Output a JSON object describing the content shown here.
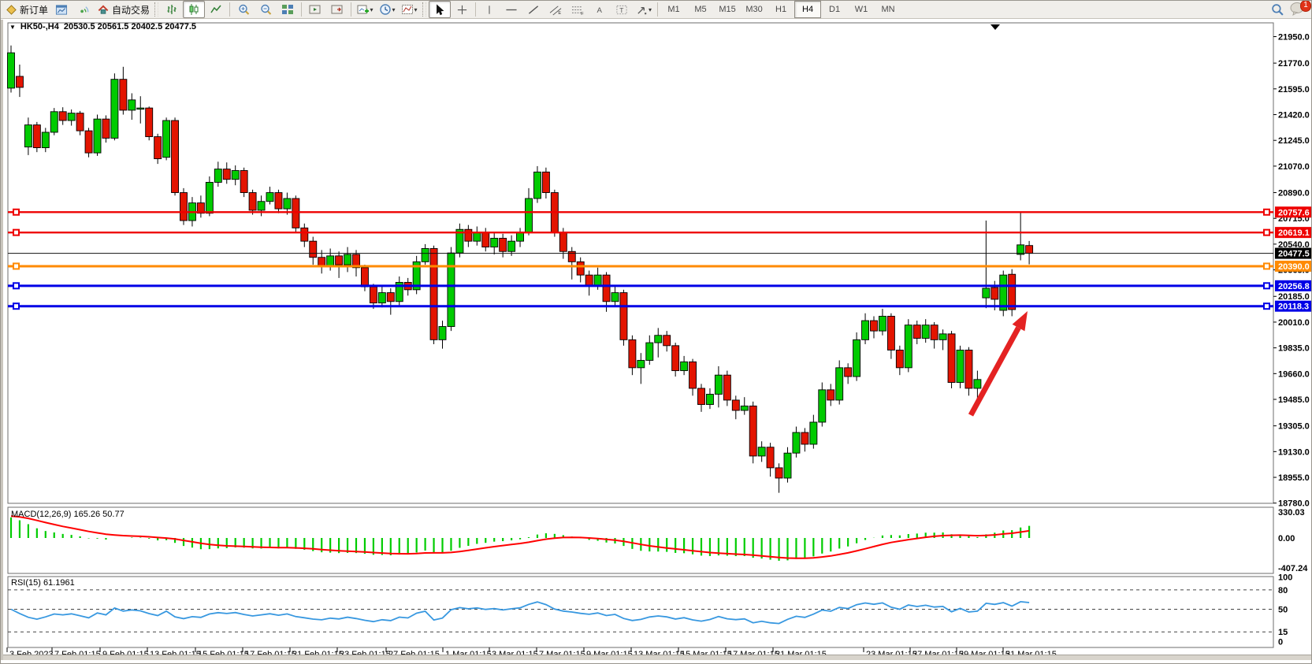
{
  "toolbar": {
    "new_order_label": "新订单",
    "autotrade_label": "自动交易",
    "timeframes": [
      "M1",
      "M5",
      "M15",
      "M30",
      "H1",
      "H4",
      "D1",
      "W1",
      "MN"
    ],
    "active_timeframe": "H4",
    "notification_badge": "1"
  },
  "chart_window": {
    "symbol_title": "HK50-,H4",
    "ohlc_text": "20530.5 20561.5 20402.5 20477.5",
    "open": "20530.5",
    "high": "20561.5",
    "low": "20402.5",
    "close": "20477.5"
  },
  "indicator_labels": {
    "macd": "MACD(12,26,9) 165.26 50.77",
    "rsi": "RSI(15) 61.1961"
  },
  "colors": {
    "bull": "#00cb00",
    "bear": "#e31400",
    "wick": "#000000",
    "line_red": "#ee0000",
    "line_orange": "#ff8a00",
    "line_blue": "#0000e6",
    "price_line": "#111111",
    "macd_hist": "#00cc00",
    "macd_signal": "#ff0000",
    "rsi_line": "#3898e0",
    "arrow": "#e42222"
  },
  "chart_data": [
    {
      "type": "candlestick",
      "title": "HK50-,H4",
      "ylim": [
        18780,
        21950
      ],
      "y_ticks": [
        21950.0,
        21770.0,
        21595.0,
        21420.0,
        21245.0,
        21070.0,
        20890.0,
        20715.0,
        20540.0,
        20365.0,
        20185.0,
        20010.0,
        19835.0,
        19660.0,
        19485.0,
        19305.0,
        19130.0,
        18955.0,
        18780.0
      ],
      "horizontal_lines": [
        {
          "price": 20757.6,
          "color": "#ee0000",
          "width": 2.4
        },
        {
          "price": 20619.1,
          "color": "#ee0000",
          "width": 2.4
        },
        {
          "price": 20477.5,
          "color": "#111111",
          "width": 1
        },
        {
          "price": 20390.0,
          "color": "#ff8a00",
          "width": 3
        },
        {
          "price": 20256.8,
          "color": "#0000e6",
          "width": 3
        },
        {
          "price": 20118.3,
          "color": "#0000e6",
          "width": 3
        }
      ],
      "time_labels": [
        {
          "x": 5,
          "label": "3 Feb 2023"
        },
        {
          "x": 62,
          "label": "7 Feb 01:15"
        },
        {
          "x": 123,
          "label": "9 Feb 01:15"
        },
        {
          "x": 183,
          "label": "13 Feb 01:15"
        },
        {
          "x": 244,
          "label": "15 Feb 01:15"
        },
        {
          "x": 304,
          "label": "17 Feb 01:15"
        },
        {
          "x": 364,
          "label": "21 Feb 01:15"
        },
        {
          "x": 424,
          "label": "23 Feb 01:15"
        },
        {
          "x": 486,
          "label": "27 Feb 01:15"
        },
        {
          "x": 558,
          "label": "1 Mar 01:15"
        },
        {
          "x": 617,
          "label": "3 Mar 01:15"
        },
        {
          "x": 677,
          "label": "7 Mar 01:15"
        },
        {
          "x": 737,
          "label": "9 Mar 01:15"
        },
        {
          "x": 797,
          "label": "13 Mar 01:15"
        },
        {
          "x": 857,
          "label": "15 Mar 01:15"
        },
        {
          "x": 917,
          "label": "17 Mar 01:15"
        },
        {
          "x": 977,
          "label": "21 Mar 01:15"
        },
        {
          "x": 1092,
          "label": "23 Mar 01:15"
        },
        {
          "x": 1151,
          "label": "27 Mar 01:15"
        },
        {
          "x": 1210,
          "label": "29 Mar 01:15"
        },
        {
          "x": 1269,
          "label": "31 Mar 01:15"
        }
      ],
      "annotation_arrow": {
        "from": [
          1228,
          502
        ],
        "to": [
          1300,
          370
        ],
        "color": "#e42222"
      },
      "candles": [
        [
          21600,
          21890,
          21570,
          21840
        ],
        [
          21680,
          21760,
          21540,
          21605
        ],
        [
          21200,
          21400,
          21145,
          21350
        ],
        [
          21350,
          21370,
          21165,
          21195
        ],
        [
          21195,
          21330,
          21165,
          21300
        ],
        [
          21300,
          21465,
          21280,
          21440
        ],
        [
          21440,
          21470,
          21350,
          21380
        ],
        [
          21380,
          21455,
          21345,
          21430
        ],
        [
          21430,
          21445,
          21280,
          21310
        ],
        [
          21310,
          21330,
          21130,
          21160
        ],
        [
          21160,
          21420,
          21140,
          21390
        ],
        [
          21390,
          21415,
          21230,
          21260
        ],
        [
          21260,
          21700,
          21245,
          21660
        ],
        [
          21660,
          21745,
          21420,
          21450
        ],
        [
          21450,
          21565,
          21385,
          21520
        ],
        [
          21460,
          21545,
          21360,
          21465
        ],
        [
          21465,
          21475,
          21245,
          21270
        ],
        [
          21270,
          21290,
          21085,
          21120
        ],
        [
          21130,
          21400,
          21110,
          21380
        ],
        [
          21380,
          21400,
          20870,
          20890
        ],
        [
          20890,
          20920,
          20670,
          20700
        ],
        [
          20700,
          20860,
          20660,
          20820
        ],
        [
          20820,
          20870,
          20720,
          20750
        ],
        [
          20750,
          21000,
          20730,
          20960
        ],
        [
          20960,
          21100,
          20930,
          21050
        ],
        [
          21050,
          21095,
          20950,
          20980
        ],
        [
          20980,
          21075,
          20940,
          21040
        ],
        [
          21040,
          21060,
          20860,
          20890
        ],
        [
          20890,
          20910,
          20740,
          20770
        ],
        [
          20770,
          20870,
          20730,
          20830
        ],
        [
          20830,
          20930,
          20810,
          20890
        ],
        [
          20890,
          20910,
          20750,
          20780
        ],
        [
          20780,
          20890,
          20740,
          20850
        ],
        [
          20850,
          20870,
          20620,
          20650
        ],
        [
          20650,
          20680,
          20520,
          20560
        ],
        [
          20560,
          20590,
          20400,
          20450
        ],
        [
          20450,
          20500,
          20340,
          20390
        ],
        [
          20390,
          20510,
          20360,
          20460
        ],
        [
          20460,
          20490,
          20310,
          20400
        ],
        [
          20400,
          20520,
          20350,
          20470
        ],
        [
          20470,
          20500,
          20320,
          20380
        ],
        [
          20380,
          20400,
          20220,
          20250
        ],
        [
          20250,
          20270,
          20100,
          20140
        ],
        [
          20140,
          20260,
          20110,
          20210
        ],
        [
          20210,
          20240,
          20060,
          20150
        ],
        [
          20150,
          20320,
          20120,
          20280
        ],
        [
          20280,
          20310,
          20190,
          20230
        ],
        [
          20230,
          20460,
          20200,
          20420
        ],
        [
          20420,
          20540,
          20400,
          20510
        ],
        [
          20510,
          20530,
          19860,
          19890
        ],
        [
          19890,
          20020,
          19830,
          19980
        ],
        [
          19980,
          20520,
          19950,
          20480
        ],
        [
          20480,
          20680,
          20450,
          20640
        ],
        [
          20640,
          20670,
          20520,
          20560
        ],
        [
          20560,
          20660,
          20530,
          20620
        ],
        [
          20620,
          20650,
          20490,
          20520
        ],
        [
          20520,
          20620,
          20470,
          20580
        ],
        [
          20580,
          20610,
          20450,
          20490
        ],
        [
          20490,
          20600,
          20460,
          20560
        ],
        [
          20560,
          20650,
          20520,
          20620
        ],
        [
          20620,
          20920,
          20600,
          20850
        ],
        [
          20850,
          21070,
          20820,
          21030
        ],
        [
          21030,
          21060,
          20850,
          20890
        ],
        [
          20890,
          20910,
          20590,
          20620
        ],
        [
          20620,
          20650,
          20440,
          20490
        ],
        [
          20490,
          20520,
          20300,
          20420
        ],
        [
          20420,
          20450,
          20280,
          20330
        ],
        [
          20330,
          20360,
          20190,
          20260
        ],
        [
          20260,
          20380,
          20230,
          20330
        ],
        [
          20330,
          20350,
          20080,
          20150
        ],
        [
          20150,
          20260,
          20120,
          20210
        ],
        [
          20210,
          20230,
          19850,
          19890
        ],
        [
          19890,
          19920,
          19650,
          19700
        ],
        [
          19700,
          19800,
          19590,
          19750
        ],
        [
          19750,
          19920,
          19720,
          19870
        ],
        [
          19870,
          19970,
          19770,
          19920
        ],
        [
          19920,
          19950,
          19810,
          19850
        ],
        [
          19850,
          19870,
          19640,
          19680
        ],
        [
          19680,
          19780,
          19650,
          19740
        ],
        [
          19740,
          19760,
          19510,
          19560
        ],
        [
          19560,
          19590,
          19400,
          19450
        ],
        [
          19450,
          19560,
          19420,
          19520
        ],
        [
          19520,
          19710,
          19430,
          19650
        ],
        [
          19650,
          19680,
          19440,
          19480
        ],
        [
          19480,
          19510,
          19350,
          19410
        ],
        [
          19410,
          19500,
          19380,
          19440
        ],
        [
          19440,
          19470,
          19050,
          19100
        ],
        [
          19100,
          19200,
          19060,
          19160
        ],
        [
          19160,
          19190,
          18960,
          19020
        ],
        [
          19020,
          19050,
          18850,
          18950
        ],
        [
          18950,
          19160,
          18920,
          19120
        ],
        [
          19120,
          19300,
          19090,
          19260
        ],
        [
          19260,
          19290,
          19130,
          19180
        ],
        [
          19180,
          19380,
          19150,
          19330
        ],
        [
          19330,
          19600,
          19300,
          19550
        ],
        [
          19550,
          19590,
          19440,
          19480
        ],
        [
          19480,
          19750,
          19450,
          19700
        ],
        [
          19700,
          19730,
          19590,
          19640
        ],
        [
          19640,
          19940,
          19610,
          19890
        ],
        [
          19890,
          20070,
          19860,
          20020
        ],
        [
          20020,
          20050,
          19900,
          19950
        ],
        [
          19950,
          20100,
          19920,
          20050
        ],
        [
          20050,
          20070,
          19760,
          19820
        ],
        [
          19820,
          19850,
          19650,
          19700
        ],
        [
          19700,
          20030,
          19670,
          19990
        ],
        [
          19990,
          20020,
          19860,
          19900
        ],
        [
          19900,
          20030,
          19870,
          19990
        ],
        [
          19990,
          20010,
          19830,
          19890
        ],
        [
          19890,
          19960,
          19820,
          19930
        ],
        [
          19930,
          19950,
          19560,
          19600
        ],
        [
          19600,
          19850,
          19560,
          19820
        ],
        [
          19820,
          19840,
          19510,
          19560
        ],
        [
          19560,
          19680,
          19430,
          19620
        ],
        [
          20175,
          20700,
          20105,
          20240
        ],
        [
          20245,
          20290,
          20090,
          20165
        ],
        [
          20090,
          20360,
          20050,
          20330
        ],
        [
          20335,
          20370,
          20050,
          20095
        ],
        [
          20470,
          20757.6,
          20430,
          20535
        ],
        [
          20530.5,
          20561.5,
          20402.5,
          20477.5
        ]
      ]
    },
    {
      "type": "bar",
      "name": "MACD",
      "params": "12,26,9",
      "current_macd": 165.26,
      "current_signal": 50.77,
      "y_ticks": [
        330.03,
        0.0,
        -407.24
      ],
      "ylim": [
        -407.24,
        330.03
      ],
      "derived_from_candle_closes": true
    },
    {
      "type": "line",
      "name": "RSI",
      "period": 15,
      "current": 61.1961,
      "y_ticks": [
        100,
        80,
        50,
        15,
        0
      ],
      "dashed_levels": [
        80,
        50,
        15
      ],
      "ylim": [
        0,
        100
      ],
      "derived_from_candle_closes": true
    }
  ]
}
